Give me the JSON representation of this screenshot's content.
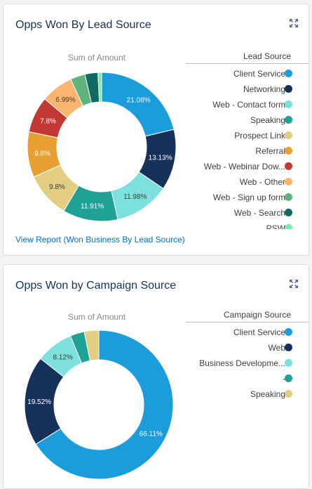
{
  "chart_data": [
    {
      "type": "pie",
      "title": "Opps Won By Lead Source",
      "subtitle": "Sum of Amount",
      "legend_title": "Lead Source",
      "legend_position": "right",
      "donut": true,
      "categories": [
        "Client Service",
        "Networking",
        "Web - Contact form",
        "Speaking",
        "Prospect Link",
        "Referral",
        "Web - Webinar Dow...",
        "Web - Other",
        "Web - Sign up form",
        "Web - Search",
        "PSW"
      ],
      "values": [
        21.08,
        13.13,
        11.98,
        11.91,
        9.8,
        9.8,
        7.8,
        6.99,
        3.2,
        2.8,
        0.8
      ],
      "value_labels": [
        "21.08%",
        "13.13%",
        "11.98%",
        "11.91%",
        "9.8%",
        "9.8%",
        "7.8%",
        "6.99%",
        "",
        "",
        ""
      ],
      "colors": [
        "#1b9ddb",
        "#16325c",
        "#7de0dc",
        "#1fa196",
        "#e2cd81",
        "#e8a033",
        "#c23934",
        "#fcb46e",
        "#5fb37d",
        "#0e6a63",
        "#7ee8ae"
      ],
      "link_text": "View Report (Won Business By Lead Source)"
    },
    {
      "type": "pie",
      "title": "Opps Won by Campaign Source",
      "subtitle": "Sum of Amount",
      "legend_title": "Campaign Source",
      "legend_position": "right",
      "donut": true,
      "categories": [
        "Client Service",
        "Web",
        "Business Developme...",
        "-",
        "Speaking"
      ],
      "values": [
        66.11,
        19.52,
        8.12,
        3.1,
        3.15
      ],
      "value_labels": [
        "66.11%",
        "19.52%",
        "8.12%",
        "",
        ""
      ],
      "colors": [
        "#1b9ddb",
        "#16325c",
        "#7de0dc",
        "#1fa196",
        "#e2cd81"
      ]
    }
  ]
}
